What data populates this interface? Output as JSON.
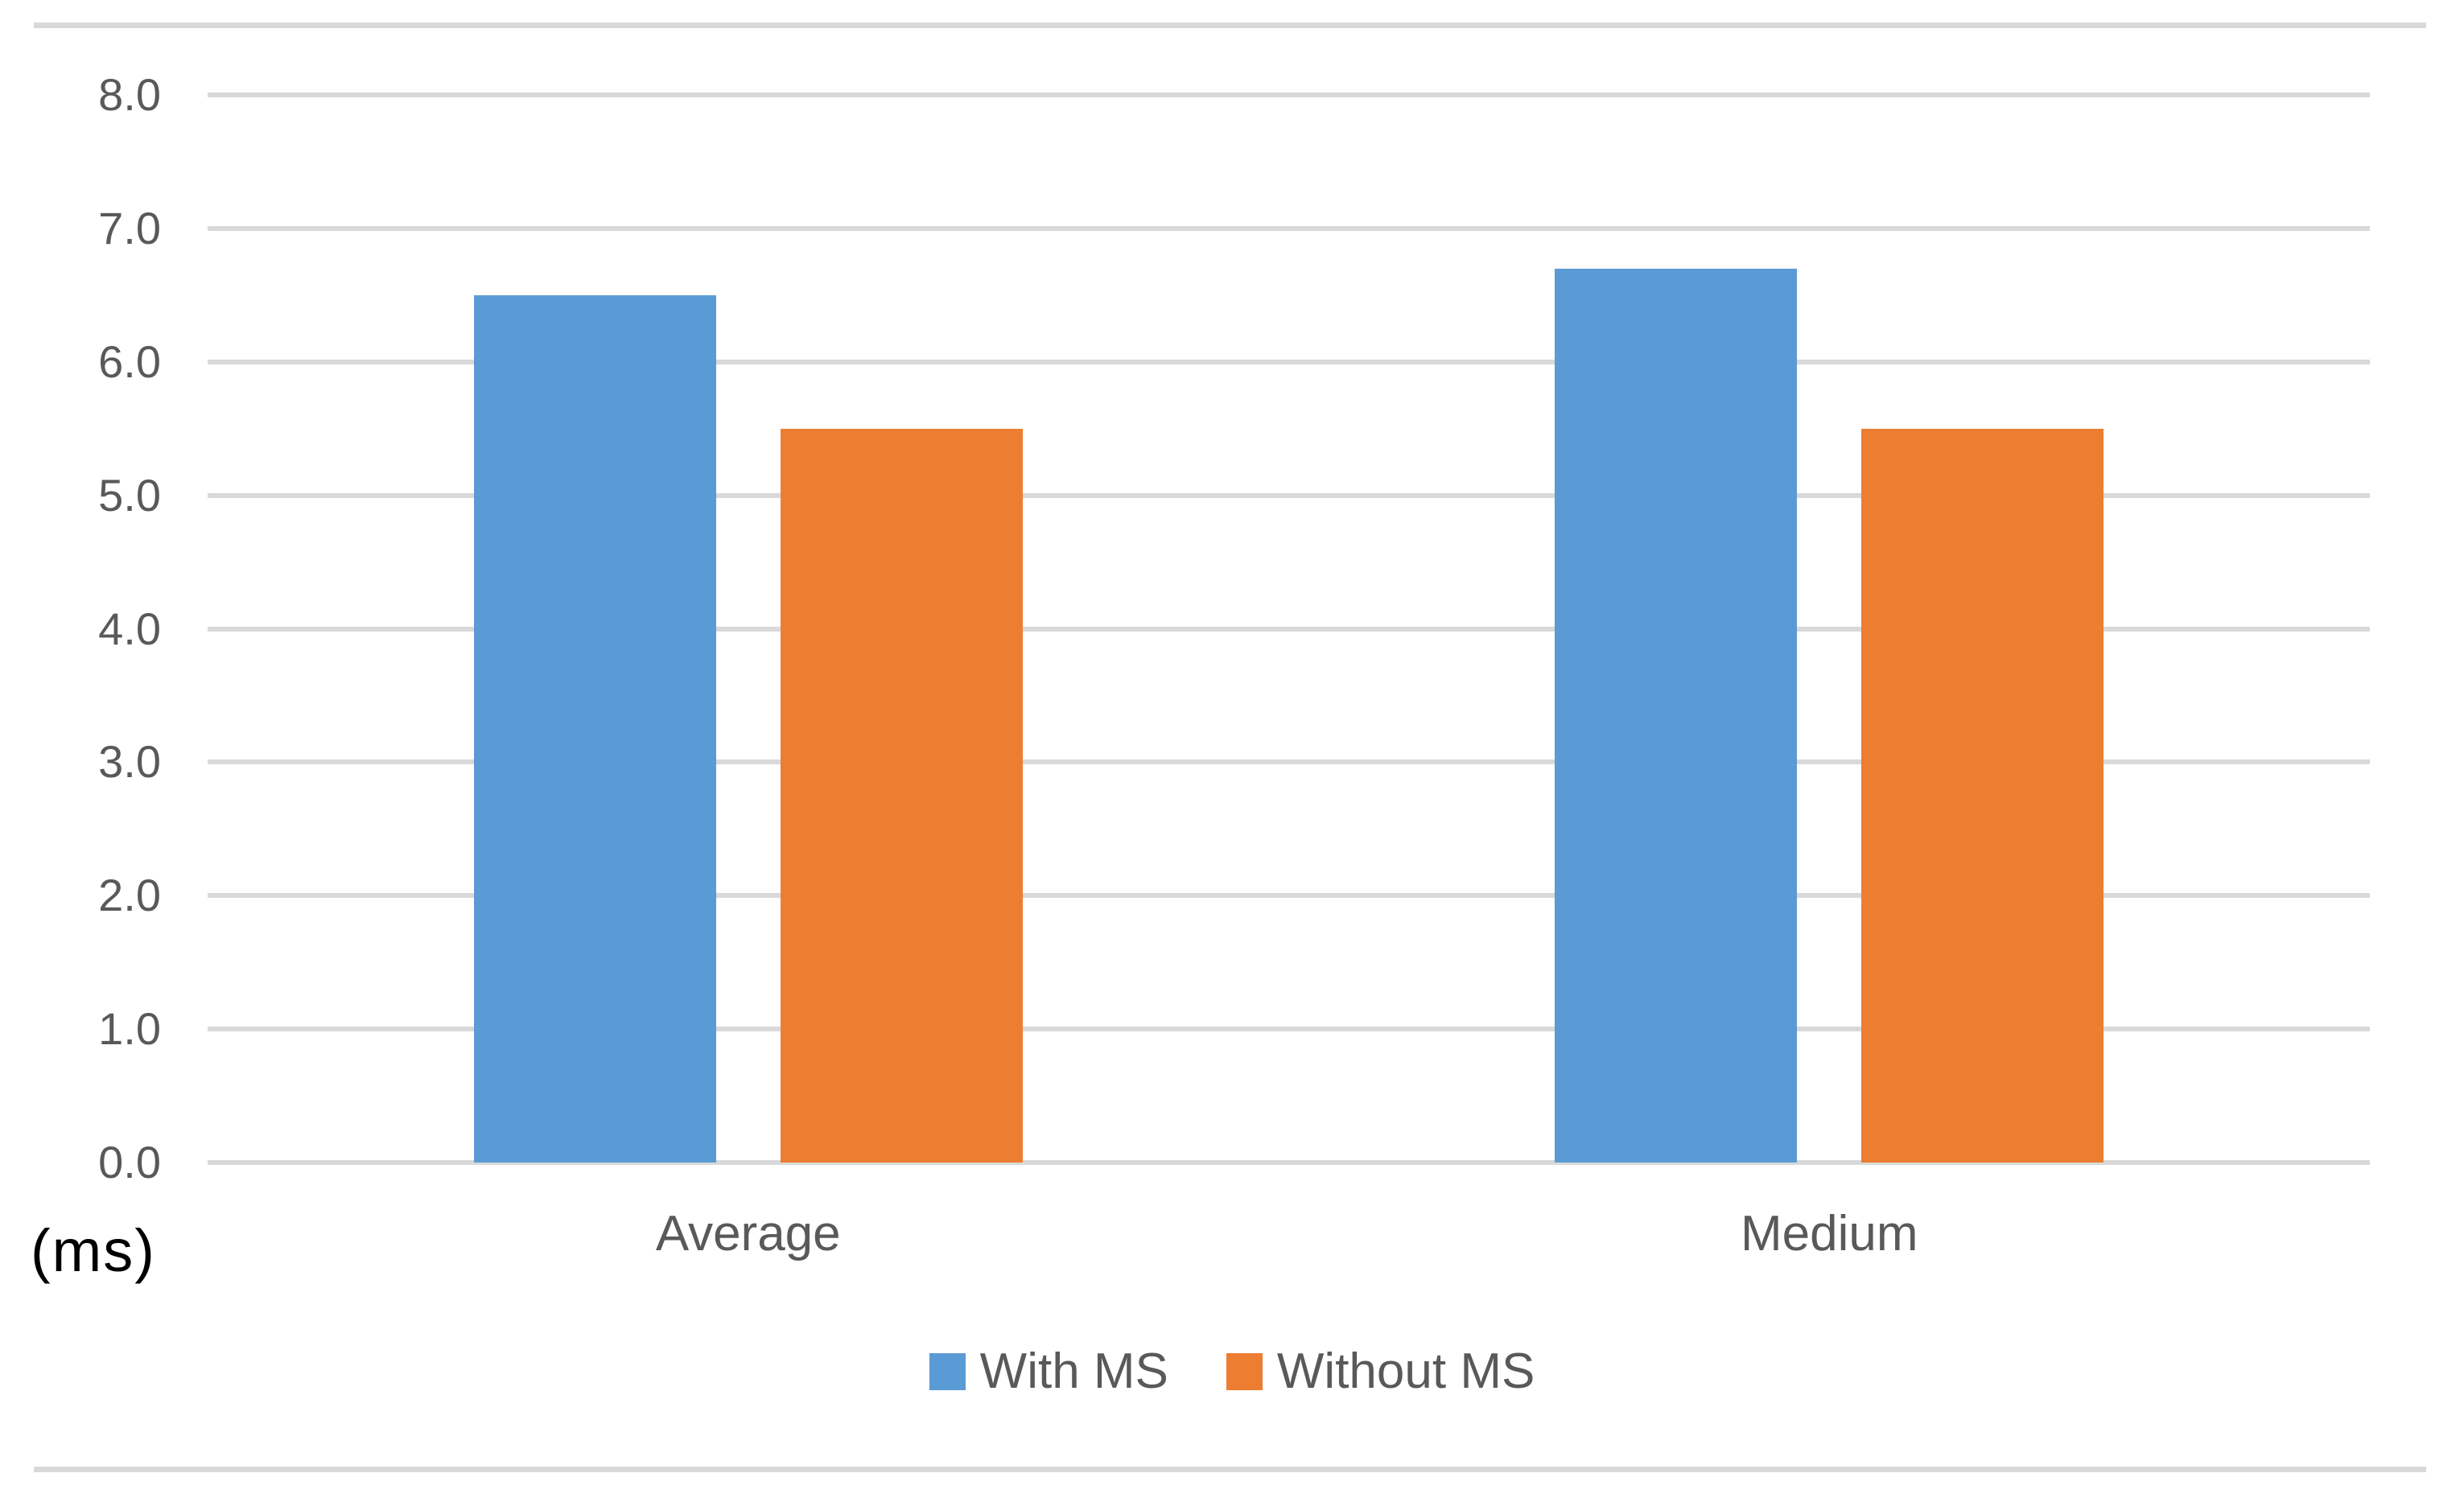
{
  "chart_data": {
    "type": "bar",
    "categories": [
      "Average",
      "Medium"
    ],
    "series": [
      {
        "name": "With MS",
        "color": "#5b9bd5",
        "values": [
          6.5,
          6.7
        ]
      },
      {
        "name": "Without MS",
        "color": "#ed7d31",
        "values": [
          5.5,
          5.5
        ]
      }
    ],
    "title": "",
    "xlabel": "",
    "ylabel": "(ms)",
    "ylim": [
      0,
      8
    ],
    "ytick_step": 1,
    "ytick_labels": [
      "0.0",
      "1.0",
      "2.0",
      "3.0",
      "4.0",
      "5.0",
      "6.0",
      "7.0",
      "8.0"
    ],
    "grid": true,
    "legend_position": "bottom",
    "gridline_color": "#d9d9d9",
    "border_color": "#d9d9d9",
    "tick_label_color": "#595959"
  }
}
